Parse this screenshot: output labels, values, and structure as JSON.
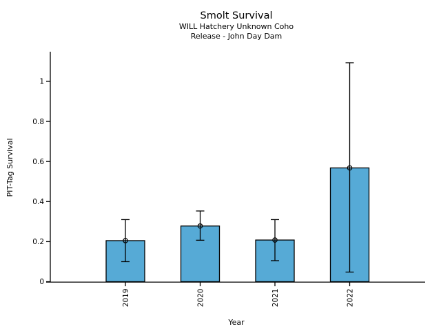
{
  "chart_data": {
    "type": "bar",
    "title": "Smolt Survival",
    "subtitle_lines": [
      "WILL Hatchery Unknown Coho",
      "Release - John Day Dam"
    ],
    "xlabel": "Year",
    "ylabel": "PIT-Tag Survival",
    "categories": [
      "2019",
      "2020",
      "2021",
      "2022"
    ],
    "xtick_labels": [
      "2019",
      "2020",
      "2021",
      "2022"
    ],
    "xtick_rotation_deg": 90,
    "series": [
      {
        "name": "PIT-Tag Survival",
        "values": [
          0.205,
          0.278,
          0.208,
          0.568
        ],
        "error_low": [
          0.1,
          0.207,
          0.105,
          0.048
        ],
        "error_high": [
          0.31,
          0.353,
          0.31,
          1.093
        ]
      }
    ],
    "yticks": [
      0,
      0.2,
      0.4,
      0.6,
      0.8,
      1
    ],
    "ytick_labels": [
      "0",
      "0.2",
      "0.4",
      "0.6",
      "0.8",
      "1"
    ],
    "ylim": [
      0,
      1.15
    ],
    "grid": false,
    "legend": null,
    "marker": "open-circle",
    "colors": {
      "bar_fill": "#56AAD6",
      "bar_edge": "#000000",
      "error_bar": "#000000",
      "marker_edge": "#000000",
      "axis": "#000000",
      "text": "#000000",
      "background": "#ffffff"
    }
  }
}
